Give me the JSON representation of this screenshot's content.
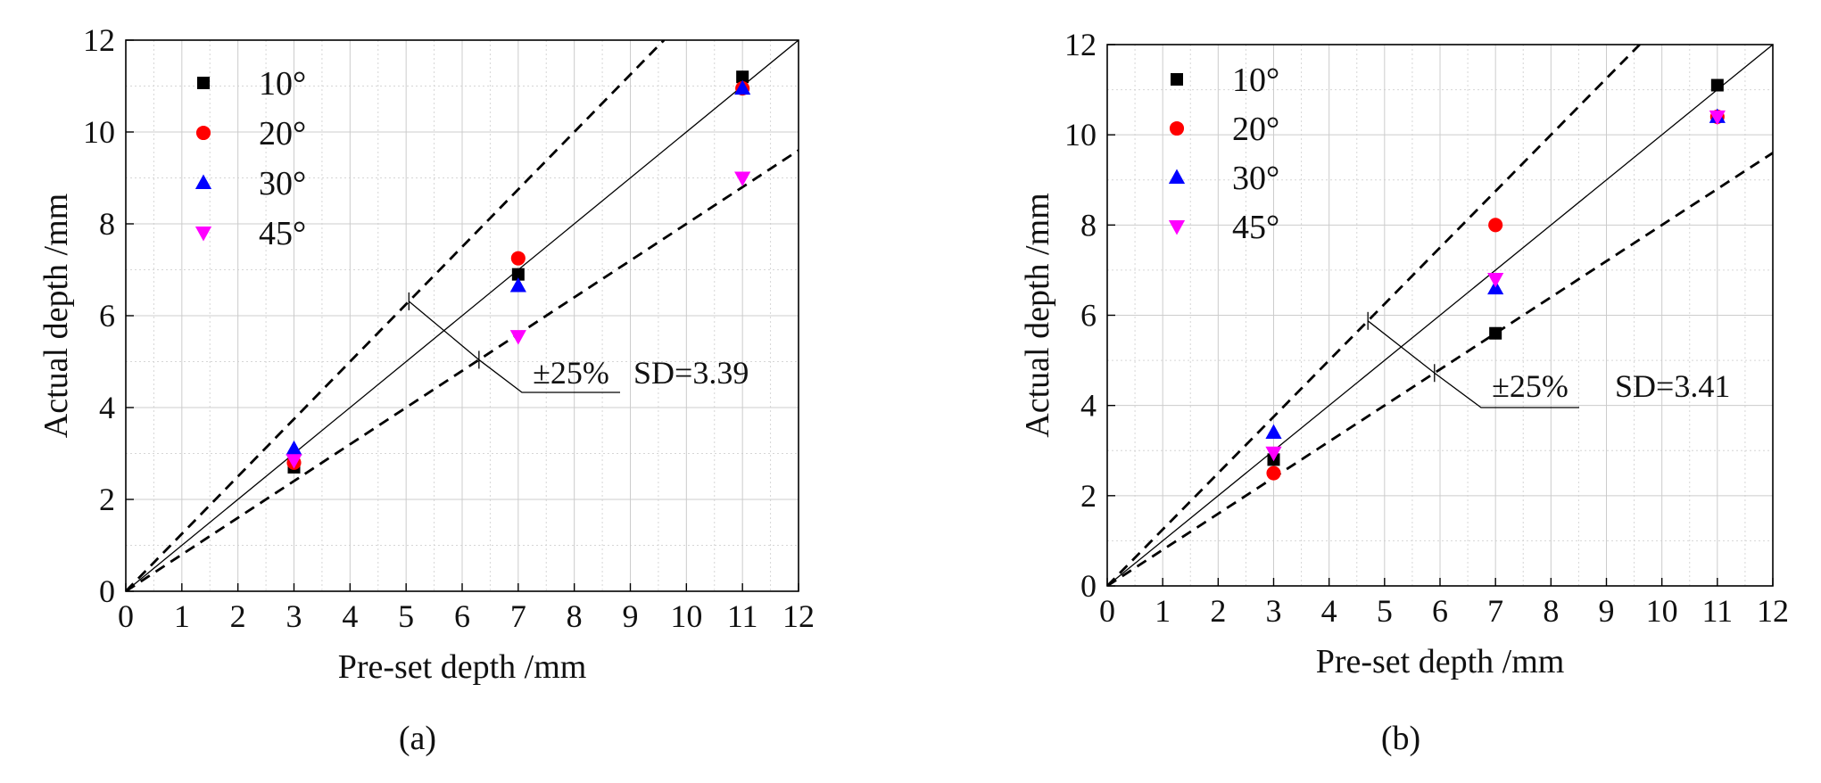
{
  "chart_data": [
    {
      "type": "scatter",
      "panel_label": "(a)",
      "panel_letter": "a",
      "xlabel": "Pre-set depth /mm",
      "ylabel": "Actual depth /mm",
      "xlim": [
        0,
        12
      ],
      "ylim": [
        0,
        12
      ],
      "xticks": [
        0,
        1,
        2,
        3,
        4,
        5,
        6,
        7,
        8,
        9,
        10,
        11,
        12
      ],
      "yticks": [
        0,
        2,
        4,
        6,
        8,
        10,
        12
      ],
      "grid": true,
      "legend_position": "top-left",
      "reference_lines": [
        {
          "name": "y = x",
          "slope": 1,
          "style": "solid"
        },
        {
          "name": "+25%",
          "slope": 1.25,
          "style": "dashed"
        },
        {
          "name": "-25%",
          "slope": 0.8,
          "style": "dashed"
        }
      ],
      "annotation": {
        "band_label": "±25%",
        "sd_label": "SD=3.39"
      },
      "series": [
        {
          "name": "10°",
          "marker": "square",
          "color": "#000000",
          "x": [
            3,
            7,
            11
          ],
          "y": [
            2.7,
            6.9,
            11.2
          ]
        },
        {
          "name": "20°",
          "marker": "circle",
          "color": "#ff0000",
          "x": [
            3,
            7,
            11
          ],
          "y": [
            2.8,
            7.25,
            10.95
          ]
        },
        {
          "name": "30°",
          "marker": "triangle-up",
          "color": "#0000ff",
          "x": [
            3,
            7,
            11
          ],
          "y": [
            3.1,
            6.65,
            10.95
          ]
        },
        {
          "name": "45°",
          "marker": "triangle-down",
          "color": "#ff00ff",
          "x": [
            3,
            7,
            11
          ],
          "y": [
            2.85,
            5.55,
            9.0
          ]
        }
      ]
    },
    {
      "type": "scatter",
      "panel_label": "(b)",
      "panel_letter": "b",
      "xlabel": "Pre-set depth /mm",
      "ylabel": "Actual depth /mm",
      "xlim": [
        0,
        12
      ],
      "ylim": [
        0,
        12
      ],
      "xticks": [
        0,
        1,
        2,
        3,
        4,
        5,
        6,
        7,
        8,
        9,
        10,
        11,
        12
      ],
      "yticks": [
        0,
        2,
        4,
        6,
        8,
        10,
        12
      ],
      "grid": true,
      "legend_position": "top-left",
      "reference_lines": [
        {
          "name": "y = x",
          "slope": 1,
          "style": "solid"
        },
        {
          "name": "+25%",
          "slope": 1.25,
          "style": "dashed"
        },
        {
          "name": "-25%",
          "slope": 0.8,
          "style": "dashed"
        }
      ],
      "annotation": {
        "band_label": "±25%",
        "sd_label": "SD=3.41"
      },
      "series": [
        {
          "name": "10°",
          "marker": "square",
          "color": "#000000",
          "x": [
            3,
            7,
            11
          ],
          "y": [
            2.8,
            5.6,
            11.1
          ]
        },
        {
          "name": "20°",
          "marker": "circle",
          "color": "#ff0000",
          "x": [
            3,
            7,
            11
          ],
          "y": [
            2.5,
            8.0,
            10.4
          ]
        },
        {
          "name": "30°",
          "marker": "triangle-up",
          "color": "#0000ff",
          "x": [
            3,
            7,
            11
          ],
          "y": [
            3.4,
            6.6,
            10.4
          ]
        },
        {
          "name": "45°",
          "marker": "triangle-down",
          "color": "#ff00ff",
          "x": [
            3,
            7,
            11
          ],
          "y": [
            2.95,
            6.8,
            10.4
          ]
        }
      ]
    }
  ]
}
